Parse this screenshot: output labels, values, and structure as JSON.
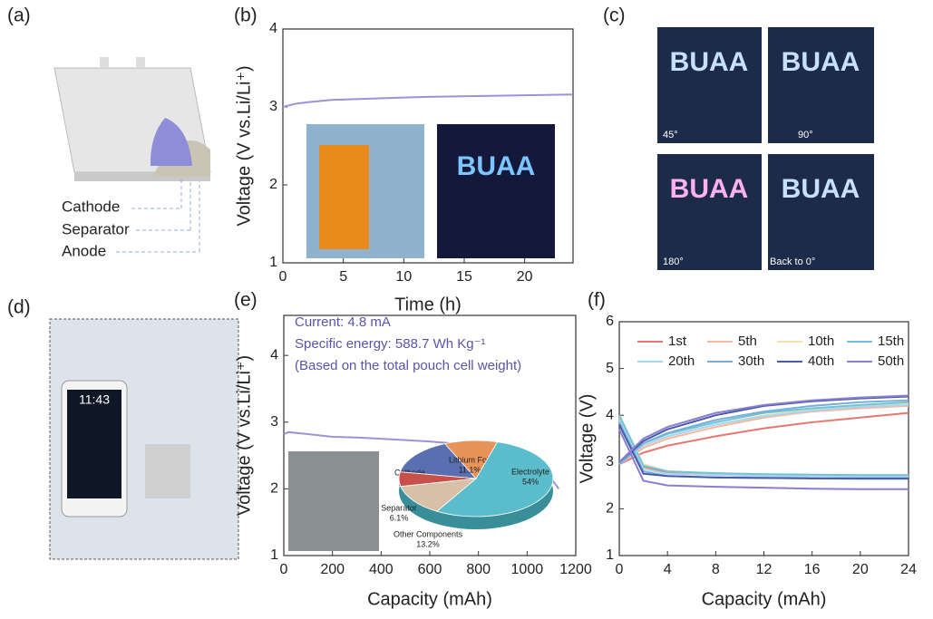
{
  "panel_labels": [
    "(a)",
    "(b)",
    "(c)",
    "(d)",
    "(e)",
    "(f)"
  ],
  "schematic": {
    "labels": [
      "Cathode",
      "Separator",
      "Anode"
    ]
  },
  "photos": {
    "sign_text": "BUAA",
    "angles": [
      "45°",
      "90°",
      "180°",
      "Back to 0°"
    ],
    "phone_time": "11:43"
  },
  "chart_data": [
    {
      "type": "line",
      "x_label": "Time (h)",
      "y_label": "Voltage (V vs.Li/Li⁺)",
      "x": [
        0,
        1,
        2,
        4,
        6,
        8,
        10,
        12,
        16,
        20,
        24
      ],
      "series": [
        {
          "color": "#9b93d6",
          "values": [
            3.0,
            3.04,
            3.06,
            3.09,
            3.1,
            3.11,
            3.12,
            3.13,
            3.14,
            3.15,
            3.16
          ]
        }
      ],
      "xlim": [
        0,
        24
      ],
      "xticks": [
        0,
        5,
        10,
        15,
        20
      ],
      "ylim": [
        1,
        4
      ],
      "yticks": [
        1,
        2,
        3,
        4
      ]
    },
    {
      "type": "line",
      "x_label": "Capacity (mAh)",
      "y_label": "Voltage (V vs.Li/Li⁺)",
      "annotations": [
        "Current: 4.8 mA",
        "Specific energy: 588.7 Wh Kg⁻¹",
        "(Based on the total pouch cell weight)"
      ],
      "x": [
        0,
        20,
        100,
        200,
        300,
        400,
        500,
        600,
        700,
        800,
        830,
        840,
        900,
        1000,
        1050,
        1100,
        1130
      ],
      "series": [
        {
          "color": "#9b93d6",
          "values": [
            2.82,
            2.85,
            2.82,
            2.78,
            2.77,
            2.75,
            2.73,
            2.71,
            2.68,
            2.63,
            2.58,
            2.64,
            2.58,
            2.42,
            2.3,
            2.15,
            2.0
          ]
        }
      ],
      "xlim": [
        0,
        1200
      ],
      "xticks": [
        0,
        200,
        400,
        600,
        800,
        1000,
        1200
      ],
      "ylim": [
        1,
        4.6
      ],
      "yticks": [
        1,
        2,
        3,
        4
      ]
    },
    {
      "type": "pie",
      "categories": [
        "Cathode",
        "Lithium Foil",
        "Electrolyte",
        "Other Components",
        "Separator"
      ],
      "values": [
        15.6,
        11.1,
        54,
        13.2,
        6.1
      ],
      "value_labels": [
        "15.6%",
        "11.1%",
        "54%",
        "13.2%",
        "6.1%"
      ],
      "colors": [
        "#5a6fb0",
        "#e8935a",
        "#5bbccc",
        "#d8c0a8",
        "#c8504a"
      ]
    },
    {
      "type": "line",
      "x_label": "Capacity (mAh)",
      "y_label": "Voltage (V)",
      "x": [
        0,
        2,
        4,
        8,
        12,
        16,
        20,
        24
      ],
      "series": [
        {
          "name": "1st",
          "color": "#e8766e",
          "values": [
            2.95,
            3.2,
            3.35,
            3.55,
            3.72,
            3.85,
            3.95,
            4.05
          ],
          "discharge": [
            3.9,
            2.9,
            2.78,
            2.72,
            2.7,
            2.7,
            2.68,
            2.68
          ]
        },
        {
          "name": "5th",
          "color": "#f4b8a0",
          "values": [
            2.95,
            3.3,
            3.5,
            3.75,
            3.95,
            4.08,
            4.15,
            4.2
          ],
          "discharge": [
            3.95,
            2.95,
            2.8,
            2.75,
            2.73,
            2.72,
            2.71,
            2.7
          ]
        },
        {
          "name": "10th",
          "color": "#f3e0a8",
          "values": [
            2.95,
            3.35,
            3.55,
            3.8,
            4.0,
            4.12,
            4.2,
            4.25
          ],
          "discharge": [
            4.0,
            2.95,
            2.8,
            2.76,
            2.74,
            2.73,
            2.72,
            2.72
          ]
        },
        {
          "name": "15th",
          "color": "#6ec3d8",
          "values": [
            2.95,
            3.4,
            3.6,
            3.85,
            4.05,
            4.15,
            4.22,
            4.28
          ],
          "discharge": [
            4.0,
            2.92,
            2.8,
            2.76,
            2.74,
            2.73,
            2.72,
            2.72
          ]
        },
        {
          "name": "20th",
          "color": "#a8d6ef",
          "values": [
            2.95,
            3.35,
            3.55,
            3.8,
            3.98,
            4.1,
            4.18,
            4.22
          ],
          "discharge": [
            3.9,
            2.85,
            2.75,
            2.72,
            2.7,
            2.69,
            2.68,
            2.68
          ]
        },
        {
          "name": "30th",
          "color": "#7aaed8",
          "values": [
            2.95,
            3.4,
            3.62,
            3.9,
            4.08,
            4.2,
            4.28,
            4.32
          ],
          "discharge": [
            3.85,
            2.8,
            2.7,
            2.67,
            2.66,
            2.65,
            2.64,
            2.64
          ]
        },
        {
          "name": "40th",
          "color": "#4a5aa8",
          "values": [
            3.0,
            3.45,
            3.7,
            4.0,
            4.2,
            4.3,
            4.36,
            4.4
          ],
          "discharge": [
            3.8,
            2.75,
            2.7,
            2.67,
            2.66,
            2.65,
            2.65,
            2.65
          ]
        },
        {
          "name": "50th",
          "color": "#8a7fd0",
          "values": [
            3.0,
            3.5,
            3.75,
            4.05,
            4.22,
            4.32,
            4.38,
            4.42
          ],
          "discharge": [
            3.7,
            2.6,
            2.5,
            2.47,
            2.45,
            2.43,
            2.42,
            2.42
          ]
        }
      ],
      "xlim": [
        0,
        24
      ],
      "xticks": [
        0,
        4,
        8,
        12,
        16,
        20,
        24
      ],
      "ylim": [
        1,
        6
      ],
      "yticks": [
        1,
        2,
        3,
        4,
        5,
        6
      ]
    }
  ]
}
